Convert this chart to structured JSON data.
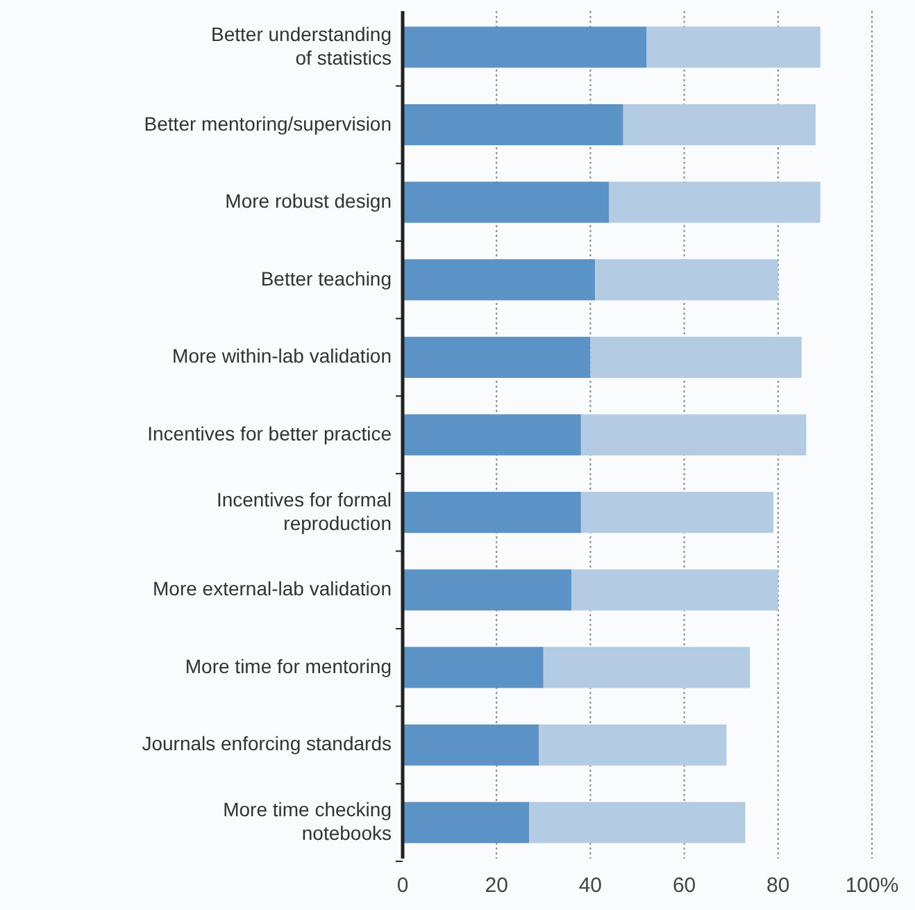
{
  "chart_data": {
    "type": "bar",
    "orientation": "horizontal",
    "stacked": true,
    "categories": [
      "Better understanding\nof statistics",
      "Better mentoring/supervision",
      "More robust design",
      "Better teaching",
      "More within-lab validation",
      "Incentives for better practice",
      "Incentives for formal\nreproduction",
      "More external-lab validation",
      "More time for mentoring",
      "Journals enforcing standards",
      "More time checking\nnotebooks"
    ],
    "series": [
      {
        "color": "#5b93c7",
        "values": [
          52,
          47,
          44,
          41,
          40,
          38,
          38,
          36,
          30,
          29,
          27
        ]
      },
      {
        "color": "#b3cbe3",
        "values": [
          37,
          41,
          45,
          39,
          45,
          48,
          41,
          44,
          44,
          40,
          46
        ]
      }
    ],
    "xlim": [
      0,
      100
    ],
    "xticks": [
      0,
      20,
      40,
      60,
      80,
      {
        "value": 100,
        "label": "100%"
      }
    ],
    "grid": "x"
  }
}
